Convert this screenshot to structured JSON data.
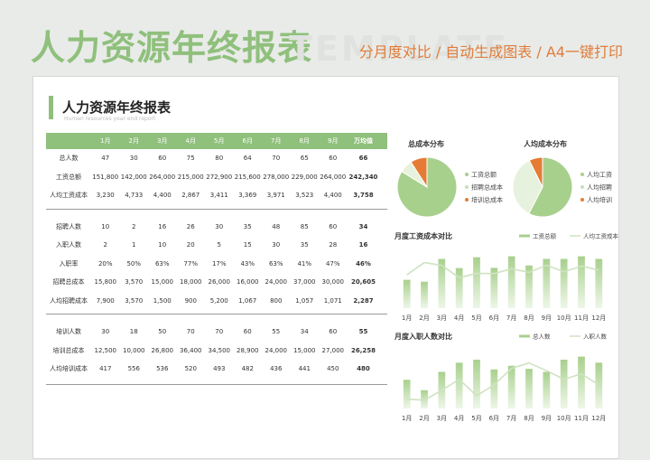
{
  "banner": {
    "title": "人力资源年终报表",
    "watermark": "TEMPLATE",
    "subtitle": "分月度对比 / 自动生成图表 / A4一键打印"
  },
  "sheet": {
    "title": "人力资源年终报表",
    "subtitle": "Human resources year end report"
  },
  "table": {
    "header": [
      "",
      "1月",
      "2月",
      "3月",
      "4月",
      "5月",
      "6月",
      "7月",
      "8月",
      "9月",
      "万均值"
    ],
    "groups": [
      [
        [
          "总人数",
          "47",
          "30",
          "60",
          "75",
          "80",
          "64",
          "70",
          "65",
          "60",
          "66"
        ],
        [
          "工资总额",
          "151,800",
          "142,000",
          "264,000",
          "215,000",
          "272,900",
          "215,600",
          "278,000",
          "229,000",
          "264,000",
          "242,340"
        ],
        [
          "人均工资成本",
          "3,230",
          "4,733",
          "4,400",
          "2,867",
          "3,411",
          "3,369",
          "3,971",
          "3,523",
          "4,400",
          "3,758"
        ]
      ],
      [
        [
          "招聘人数",
          "10",
          "2",
          "16",
          "26",
          "30",
          "35",
          "48",
          "85",
          "60",
          "34"
        ],
        [
          "入职人数",
          "2",
          "1",
          "10",
          "20",
          "5",
          "15",
          "30",
          "35",
          "28",
          "16"
        ],
        [
          "入职率",
          "20%",
          "50%",
          "63%",
          "77%",
          "17%",
          "43%",
          "63%",
          "41%",
          "47%",
          "46%"
        ],
        [
          "招聘总成本",
          "15,800",
          "3,570",
          "15,000",
          "18,000",
          "26,000",
          "16,000",
          "24,000",
          "37,000",
          "30,000",
          "20,605"
        ],
        [
          "人均招聘成本",
          "7,900",
          "3,570",
          "1,500",
          "900",
          "5,200",
          "1,067",
          "800",
          "1,057",
          "1,071",
          "2,287"
        ]
      ],
      [
        [
          "培训人数",
          "30",
          "18",
          "50",
          "70",
          "70",
          "60",
          "55",
          "34",
          "60",
          "55"
        ],
        [
          "培训总成本",
          "12,500",
          "10,000",
          "26,800",
          "36,400",
          "34,500",
          "28,900",
          "24,000",
          "15,000",
          "27,000",
          "26,258"
        ],
        [
          "人均培训成本",
          "417",
          "556",
          "536",
          "520",
          "493",
          "482",
          "436",
          "441",
          "450",
          "480"
        ]
      ]
    ]
  },
  "chart_data": [
    {
      "type": "pie",
      "title": "总成本分布",
      "labels": [
        "工资总额",
        "招聘总成本",
        "培训总成本"
      ],
      "values": [
        242340,
        20605,
        26258
      ],
      "colors": [
        "#a8d08d",
        "#e6f2dd",
        "#e57c35"
      ]
    },
    {
      "type": "pie",
      "title": "人均成本分布",
      "labels": [
        "人均工资",
        "人均招聘",
        "人均培训"
      ],
      "values": [
        3758,
        2287,
        480
      ],
      "colors": [
        "#a8d08d",
        "#e6f2dd",
        "#e57c35"
      ]
    },
    {
      "type": "bar",
      "title": "月度工资成本对比",
      "categories": [
        "1月",
        "2月",
        "3月",
        "4月",
        "5月",
        "6月",
        "7月",
        "8月",
        "9月",
        "10月",
        "11月",
        "12月"
      ],
      "series": [
        {
          "name": "工资总额",
          "values": [
            152000,
            142000,
            264000,
            215000,
            273000,
            216000,
            278000,
            229000,
            264000,
            264000,
            278000,
            264000
          ],
          "color": "#a8d08d"
        },
        {
          "name": "人均工资成本",
          "values": [
            3230,
            4733,
            4400,
            2867,
            3411,
            3369,
            3971,
            3523,
            4400,
            3600,
            4300,
            3800
          ],
          "color": "#cfe3c2",
          "style": "line"
        }
      ]
    },
    {
      "type": "bar",
      "title": "月度入职人数对比",
      "categories": [
        "1月",
        "2月",
        "3月",
        "4月",
        "5月",
        "6月",
        "7月",
        "8月",
        "9月",
        "10月",
        "11月",
        "12月"
      ],
      "series": [
        {
          "name": "总人数",
          "values": [
            47,
            30,
            60,
            75,
            80,
            64,
            70,
            65,
            60,
            80,
            85,
            75
          ],
          "color": "#a8d08d"
        },
        {
          "name": "入职人数",
          "values": [
            2,
            1,
            10,
            20,
            5,
            15,
            30,
            35,
            28,
            20,
            25,
            15
          ],
          "color": "#cfe3c2",
          "style": "line"
        }
      ]
    }
  ]
}
